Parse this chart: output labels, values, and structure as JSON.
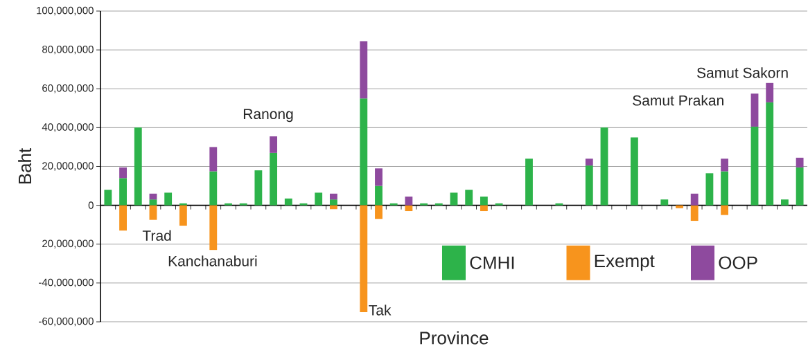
{
  "chart_data": {
    "type": "bar",
    "stacked": true,
    "xlabel": "Province",
    "ylabel": "Baht",
    "categories": [
      null,
      null,
      null,
      null,
      null,
      null,
      null,
      null,
      null,
      null,
      null,
      null,
      null,
      null,
      null,
      null,
      null,
      null,
      null,
      null,
      null,
      null,
      null,
      null,
      null,
      null,
      null,
      null,
      null,
      null,
      null,
      null,
      null,
      null,
      null,
      null,
      null,
      null,
      null,
      null,
      null,
      null,
      null,
      null,
      null,
      null,
      null
    ],
    "annotations": [
      "Trad",
      "Kanchanaburi",
      "Ranong",
      "Tak",
      "Samut Prakan",
      "Samut Sakorn"
    ],
    "series": [
      {
        "name": "CMHI",
        "color": "#2db34a",
        "values": [
          8000000,
          14000000,
          40000000,
          3000000,
          6500000,
          1000000,
          null,
          17500000,
          1000000,
          1000000,
          18000000,
          27000000,
          3500000,
          1000000,
          6500000,
          3000000,
          null,
          55000000,
          10000000,
          1000000,
          null,
          1000000,
          1000000,
          6500000,
          8000000,
          4500000,
          1000000,
          null,
          24000000,
          null,
          1000000,
          null,
          20500000,
          40000000,
          null,
          35000000,
          null,
          3000000,
          null,
          null,
          16500000,
          17500000,
          null,
          40500000,
          53000000,
          3000000,
          19500000
        ]
      },
      {
        "name": "Exempt",
        "color": "#f7941d",
        "values": [
          null,
          -13000000,
          null,
          -7500000,
          null,
          -10500000,
          null,
          -23000000,
          null,
          null,
          null,
          null,
          null,
          null,
          null,
          -2000000,
          null,
          -55000000,
          -7000000,
          null,
          -3000000,
          null,
          null,
          null,
          null,
          -3000000,
          null,
          null,
          null,
          null,
          null,
          null,
          null,
          null,
          null,
          null,
          null,
          null,
          -1500000,
          -8000000,
          null,
          -5000000,
          null,
          null,
          null,
          null,
          null
        ]
      },
      {
        "name": "OOP",
        "color": "#8e4a9e",
        "values": [
          null,
          5500000,
          null,
          3000000,
          null,
          null,
          null,
          12500000,
          null,
          null,
          null,
          8500000,
          null,
          null,
          null,
          3000000,
          null,
          29500000,
          9000000,
          null,
          4500000,
          null,
          null,
          null,
          null,
          null,
          null,
          null,
          null,
          null,
          null,
          null,
          3500000,
          null,
          null,
          null,
          null,
          null,
          null,
          6000000,
          null,
          6500000,
          null,
          17000000,
          10000000,
          null,
          5000000
        ]
      }
    ],
    "ylim": [
      -60000000,
      100000000
    ],
    "yticks": [
      {
        "value": 100000000,
        "label": "100,000,000"
      },
      {
        "value": 80000000,
        "label": "80,000,000"
      },
      {
        "value": 60000000,
        "label": "60,000,000"
      },
      {
        "value": 40000000,
        "label": "40,000,000"
      },
      {
        "value": 20000000,
        "label": "20,000,000"
      },
      0,
      {
        "value": -20000000,
        "label": "20,000,000"
      },
      {
        "value": -40000000,
        "label": "-40,000,000"
      },
      {
        "value": -60000000,
        "label": "-60,000,000"
      }
    ],
    "grid": "y",
    "legend": "bottom right"
  }
}
